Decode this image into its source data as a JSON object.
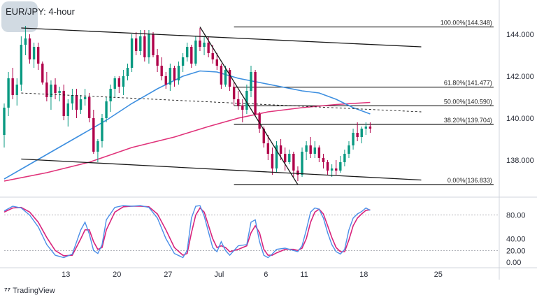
{
  "chart_data": {
    "type": "candlestick",
    "title": "EUR/JPY: 4-hour",
    "price_axis": {
      "ticks": [
        "144.000",
        "142.000",
        "140.000",
        "138.000"
      ],
      "values": [
        144.0,
        142.0,
        140.0,
        138.0
      ],
      "range": [
        136.3,
        145.3
      ]
    },
    "stoch_axis": {
      "ticks": [
        "80.00",
        "40.00",
        "20.00",
        "0.00"
      ],
      "values": [
        80,
        40,
        20,
        0
      ],
      "range": [
        -8,
        108
      ],
      "levels": [
        80,
        20
      ]
    },
    "x_axis": {
      "ticks": [
        "13",
        "20",
        "27",
        "Jul",
        "6",
        "11",
        "18",
        "25"
      ],
      "range": [
        0,
        116
      ]
    },
    "fibonacci": [
      {
        "label": "100.00%(144.348)",
        "value": 144.348
      },
      {
        "label": "61.80%(141.477)",
        "value": 141.477
      },
      {
        "label": "50.00%(140.590)",
        "value": 140.59
      },
      {
        "label": "38.20%(139.704)",
        "value": 139.704
      },
      {
        "label": "0.00%(136.833)",
        "value": 136.833
      }
    ],
    "candles": [
      [
        139.2,
        140.7,
        138.6,
        140.5
      ],
      [
        140.5,
        142.2,
        140.1,
        141.9
      ],
      [
        141.9,
        142.4,
        140.9,
        141.1
      ],
      [
        141.1,
        141.9,
        140.6,
        141.6
      ],
      [
        141.6,
        143.9,
        141.3,
        143.5
      ],
      [
        143.5,
        144.4,
        143.0,
        143.8
      ],
      [
        143.8,
        144.0,
        142.6,
        142.8
      ],
      [
        142.8,
        143.6,
        142.4,
        143.4
      ],
      [
        143.4,
        143.6,
        142.3,
        142.6
      ],
      [
        142.6,
        142.7,
        141.6,
        141.7
      ],
      [
        141.7,
        142.2,
        140.8,
        141.0
      ],
      [
        141.0,
        141.8,
        140.4,
        141.6
      ],
      [
        141.6,
        141.9,
        140.9,
        141.2
      ],
      [
        141.2,
        141.5,
        140.8,
        141.3
      ],
      [
        141.3,
        141.6,
        139.9,
        140.1
      ],
      [
        140.1,
        140.9,
        139.6,
        140.7
      ],
      [
        140.7,
        141.4,
        140.4,
        141.1
      ],
      [
        141.1,
        141.4,
        140.0,
        140.4
      ],
      [
        140.4,
        141.1,
        140.2,
        140.9
      ],
      [
        140.9,
        141.4,
        140.6,
        141.0
      ],
      [
        141.0,
        141.2,
        139.8,
        140.0
      ],
      [
        140.0,
        140.4,
        138.3,
        138.4
      ],
      [
        138.4,
        139.0,
        137.9,
        138.9
      ],
      [
        138.9,
        140.2,
        138.6,
        140.0
      ],
      [
        140.0,
        141.0,
        139.8,
        140.8
      ],
      [
        140.8,
        141.6,
        140.3,
        141.4
      ],
      [
        141.4,
        142.0,
        141.0,
        141.9
      ],
      [
        141.9,
        142.0,
        141.2,
        141.5
      ],
      [
        141.5,
        142.3,
        141.1,
        142.0
      ],
      [
        142.0,
        142.6,
        141.8,
        142.4
      ],
      [
        142.4,
        144.0,
        142.2,
        143.8
      ],
      [
        143.8,
        144.1,
        143.0,
        143.2
      ],
      [
        143.2,
        144.2,
        143.0,
        143.9
      ],
      [
        143.9,
        144.2,
        142.7,
        142.9
      ],
      [
        142.9,
        144.2,
        142.6,
        144.0
      ],
      [
        144.0,
        144.1,
        142.9,
        143.0
      ],
      [
        143.0,
        143.3,
        142.2,
        142.5
      ],
      [
        142.5,
        142.9,
        141.8,
        142.0
      ],
      [
        142.0,
        142.2,
        141.4,
        141.6
      ],
      [
        141.6,
        142.6,
        141.3,
        142.4
      ],
      [
        142.4,
        142.5,
        141.5,
        141.8
      ],
      [
        141.8,
        142.7,
        141.6,
        142.5
      ],
      [
        142.5,
        143.1,
        142.2,
        142.9
      ],
      [
        142.9,
        143.6,
        142.7,
        143.4
      ],
      [
        143.4,
        143.5,
        142.4,
        142.6
      ],
      [
        142.6,
        143.9,
        142.5,
        143.7
      ],
      [
        143.7,
        144.3,
        143.2,
        143.4
      ],
      [
        143.4,
        143.9,
        143.0,
        143.6
      ],
      [
        143.6,
        143.9,
        142.9,
        143.1
      ],
      [
        143.1,
        143.5,
        142.6,
        142.8
      ],
      [
        142.8,
        143.1,
        142.3,
        142.5
      ],
      [
        142.5,
        142.6,
        141.4,
        141.6
      ],
      [
        141.6,
        142.5,
        141.5,
        142.3
      ],
      [
        142.3,
        142.4,
        141.3,
        141.5
      ],
      [
        141.5,
        141.7,
        140.6,
        140.9
      ],
      [
        140.9,
        141.3,
        140.4,
        140.6
      ],
      [
        140.6,
        140.9,
        139.8,
        140.4
      ],
      [
        140.4,
        141.6,
        140.2,
        141.3
      ],
      [
        141.3,
        142.5,
        141.0,
        142.2
      ],
      [
        142.2,
        142.3,
        140.1,
        140.2
      ],
      [
        140.2,
        140.3,
        139.3,
        139.5
      ],
      [
        139.5,
        139.6,
        138.6,
        138.8
      ],
      [
        138.8,
        139.2,
        138.0,
        138.3
      ],
      [
        138.3,
        138.6,
        137.3,
        137.6
      ],
      [
        137.6,
        138.9,
        137.4,
        138.7
      ],
      [
        138.7,
        139.0,
        138.0,
        138.3
      ],
      [
        138.3,
        138.6,
        137.5,
        137.9
      ],
      [
        137.9,
        138.5,
        137.8,
        138.3
      ],
      [
        138.3,
        138.4,
        137.2,
        137.5
      ],
      [
        137.5,
        137.7,
        137.0,
        137.3
      ],
      [
        137.3,
        138.6,
        137.2,
        138.4
      ],
      [
        138.4,
        138.9,
        138.0,
        138.7
      ],
      [
        138.7,
        139.1,
        138.1,
        138.3
      ],
      [
        138.3,
        138.9,
        138.1,
        138.6
      ],
      [
        138.6,
        138.7,
        137.9,
        138.1
      ],
      [
        138.1,
        138.3,
        137.6,
        137.9
      ],
      [
        137.9,
        138.0,
        137.3,
        137.5
      ],
      [
        137.5,
        137.8,
        137.2,
        137.6
      ],
      [
        137.6,
        138.0,
        137.3,
        137.5
      ],
      [
        137.5,
        138.2,
        137.4,
        137.9
      ],
      [
        137.9,
        138.5,
        137.7,
        138.3
      ],
      [
        138.3,
        138.9,
        138.1,
        138.7
      ],
      [
        138.7,
        139.5,
        138.5,
        139.3
      ],
      [
        139.3,
        139.8,
        138.9,
        139.1
      ],
      [
        139.1,
        139.6,
        138.8,
        139.5
      ],
      [
        139.5,
        139.8,
        139.2,
        139.6
      ],
      [
        139.6,
        139.8,
        139.3,
        139.5
      ]
    ],
    "ma_blue": [
      [
        0,
        137.1
      ],
      [
        6,
        137.8
      ],
      [
        12,
        138.5
      ],
      [
        18,
        139.2
      ],
      [
        24,
        139.9
      ],
      [
        30,
        140.7
      ],
      [
        36,
        141.4
      ],
      [
        42,
        142.0
      ],
      [
        46,
        142.25
      ],
      [
        50,
        142.2
      ],
      [
        55,
        141.9
      ],
      [
        60,
        141.7
      ],
      [
        65,
        141.5
      ],
      [
        70,
        141.3
      ],
      [
        74,
        141.2
      ],
      [
        78,
        140.9
      ],
      [
        82,
        140.5
      ],
      [
        86,
        140.2
      ]
    ],
    "ma_magenta": [
      [
        0,
        137.0
      ],
      [
        10,
        137.4
      ],
      [
        20,
        137.9
      ],
      [
        30,
        138.6
      ],
      [
        40,
        139.1
      ],
      [
        48,
        139.6
      ],
      [
        55,
        140.0
      ],
      [
        62,
        140.3
      ],
      [
        70,
        140.5
      ],
      [
        78,
        140.65
      ],
      [
        86,
        140.75
      ]
    ],
    "trendlines": [
      {
        "style": "solid",
        "from": [
          4,
          144.3
        ],
        "to": [
          98,
          143.4
        ]
      },
      {
        "style": "solid",
        "from": [
          4,
          138.05
        ],
        "to": [
          98,
          137.05
        ]
      },
      {
        "style": "dashed",
        "from": [
          4,
          141.2
        ],
        "to": [
          98,
          140.3
        ]
      },
      {
        "style": "solid",
        "from": [
          46,
          144.35
        ],
        "to": [
          69,
          136.83
        ]
      }
    ],
    "stoch_k": [
      [
        0,
        87
      ],
      [
        2,
        95
      ],
      [
        4,
        92
      ],
      [
        6,
        80
      ],
      [
        8,
        60
      ],
      [
        10,
        30
      ],
      [
        12,
        12
      ],
      [
        14,
        8
      ],
      [
        16,
        14
      ],
      [
        18,
        55
      ],
      [
        19,
        68
      ],
      [
        20,
        48
      ],
      [
        21,
        20
      ],
      [
        22,
        15
      ],
      [
        23,
        30
      ],
      [
        24,
        72
      ],
      [
        26,
        93
      ],
      [
        28,
        96
      ],
      [
        30,
        95
      ],
      [
        32,
        96
      ],
      [
        34,
        93
      ],
      [
        36,
        75
      ],
      [
        38,
        40
      ],
      [
        40,
        15
      ],
      [
        42,
        8
      ],
      [
        43,
        20
      ],
      [
        44,
        75
      ],
      [
        45,
        95
      ],
      [
        46,
        96
      ],
      [
        47,
        78
      ],
      [
        49,
        25
      ],
      [
        50,
        18
      ],
      [
        51,
        35
      ],
      [
        52,
        20
      ],
      [
        53,
        12
      ],
      [
        55,
        28
      ],
      [
        57,
        30
      ],
      [
        58,
        68
      ],
      [
        59,
        72
      ],
      [
        60,
        35
      ],
      [
        61,
        12
      ],
      [
        62,
        8
      ],
      [
        63,
        14
      ],
      [
        64,
        22
      ],
      [
        66,
        24
      ],
      [
        68,
        20
      ],
      [
        69,
        18
      ],
      [
        70,
        28
      ],
      [
        71,
        55
      ],
      [
        72,
        85
      ],
      [
        73,
        92
      ],
      [
        74,
        90
      ],
      [
        75,
        75
      ],
      [
        76,
        50
      ],
      [
        77,
        30
      ],
      [
        78,
        18
      ],
      [
        79,
        14
      ],
      [
        80,
        22
      ],
      [
        81,
        55
      ],
      [
        82,
        75
      ],
      [
        83,
        82
      ],
      [
        84,
        86
      ],
      [
        85,
        92
      ],
      [
        86,
        88
      ]
    ],
    "stoch_d": [
      [
        0,
        85
      ],
      [
        2,
        92
      ],
      [
        4,
        93
      ],
      [
        6,
        85
      ],
      [
        8,
        68
      ],
      [
        10,
        42
      ],
      [
        12,
        20
      ],
      [
        14,
        11
      ],
      [
        16,
        12
      ],
      [
        18,
        40
      ],
      [
        19,
        55
      ],
      [
        20,
        55
      ],
      [
        21,
        35
      ],
      [
        22,
        22
      ],
      [
        23,
        25
      ],
      [
        24,
        55
      ],
      [
        26,
        85
      ],
      [
        28,
        94
      ],
      [
        30,
        95
      ],
      [
        32,
        95
      ],
      [
        34,
        94
      ],
      [
        36,
        82
      ],
      [
        38,
        55
      ],
      [
        40,
        25
      ],
      [
        42,
        12
      ],
      [
        43,
        15
      ],
      [
        44,
        50
      ],
      [
        45,
        80
      ],
      [
        46,
        92
      ],
      [
        47,
        85
      ],
      [
        49,
        40
      ],
      [
        50,
        25
      ],
      [
        51,
        28
      ],
      [
        52,
        25
      ],
      [
        53,
        18
      ],
      [
        55,
        22
      ],
      [
        57,
        28
      ],
      [
        58,
        50
      ],
      [
        59,
        62
      ],
      [
        60,
        50
      ],
      [
        61,
        22
      ],
      [
        62,
        12
      ],
      [
        63,
        12
      ],
      [
        64,
        16
      ],
      [
        66,
        22
      ],
      [
        68,
        22
      ],
      [
        69,
        20
      ],
      [
        70,
        24
      ],
      [
        71,
        40
      ],
      [
        72,
        68
      ],
      [
        73,
        85
      ],
      [
        74,
        90
      ],
      [
        75,
        82
      ],
      [
        76,
        62
      ],
      [
        77,
        42
      ],
      [
        78,
        25
      ],
      [
        79,
        18
      ],
      [
        80,
        18
      ],
      [
        81,
        38
      ],
      [
        82,
        62
      ],
      [
        83,
        75
      ],
      [
        84,
        82
      ],
      [
        85,
        88
      ],
      [
        86,
        89
      ]
    ],
    "colors": {
      "up": "#089981",
      "down": "#b0004a",
      "ma_blue": "#3d8fe0",
      "ma_magenta": "#e0337a",
      "stoch_k": "#4b8fe8",
      "stoch_d": "#d8247c",
      "line": "#1a1a1a"
    }
  },
  "watermark": "TradingView"
}
